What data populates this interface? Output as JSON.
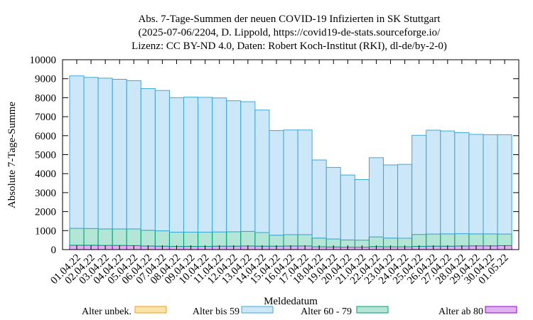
{
  "chart_data": {
    "type": "bar",
    "stacked": true,
    "title_lines": [
      "Abs. 7-Tage-Summen der neuen COVID-19 Infizierten in SK Stuttgart",
      "(2025-07-06/2204, D. Lippold, https://covid19-de-stats.sourceforge.io/",
      "Lizenz: CC BY-ND 4.0, Daten: Robert Koch-Institut (RKI), dl-de/by-2-0)"
    ],
    "xlabel": "Meldedatum",
    "ylabel": "Absolute 7-Tage-Summe",
    "ylim": [
      0,
      10000
    ],
    "yticks": [
      0,
      1000,
      2000,
      3000,
      4000,
      5000,
      6000,
      7000,
      8000,
      9000,
      10000
    ],
    "grid": false,
    "legend_position": "bottom",
    "categories": [
      "01.04.22",
      "02.04.22",
      "03.04.22",
      "04.04.22",
      "05.04.22",
      "06.04.22",
      "07.04.22",
      "08.04.22",
      "09.04.22",
      "10.04.22",
      "11.04.22",
      "12.04.22",
      "13.04.22",
      "14.04.22",
      "15.04.22",
      "16.04.22",
      "17.04.22",
      "18.04.22",
      "19.04.22",
      "20.04.22",
      "21.04.22",
      "22.04.22",
      "23.04.22",
      "24.04.22",
      "25.04.22",
      "26.04.22",
      "27.04.22",
      "28.04.22",
      "29.04.22",
      "30.04.22",
      "01.05.22"
    ],
    "series": [
      {
        "name": "Alter unbek.",
        "color": "#fde3a7",
        "stroke": "#e6a01a",
        "values": [
          0,
          0,
          0,
          0,
          0,
          0,
          0,
          0,
          0,
          0,
          0,
          0,
          0,
          0,
          0,
          0,
          0,
          0,
          0,
          0,
          0,
          0,
          0,
          0,
          0,
          0,
          0,
          0,
          0,
          0,
          0
        ]
      },
      {
        "name": "Alter ab 80",
        "color": "#e0b0f0",
        "stroke": "#9400d3",
        "values": [
          230,
          230,
          220,
          220,
          210,
          190,
          180,
          170,
          170,
          170,
          180,
          180,
          190,
          180,
          180,
          190,
          190,
          150,
          140,
          130,
          130,
          160,
          150,
          150,
          170,
          180,
          180,
          190,
          200,
          200,
          210
        ]
      },
      {
        "name": "Alter 60 - 79",
        "color": "#b3e6d6",
        "stroke": "#009e73",
        "values": [
          890,
          880,
          870,
          870,
          880,
          830,
          810,
          750,
          750,
          750,
          750,
          760,
          770,
          720,
          580,
          600,
          600,
          460,
          420,
          380,
          370,
          510,
          460,
          450,
          630,
          640,
          650,
          650,
          630,
          630,
          610
        ]
      },
      {
        "name": "Alter bis 59",
        "color": "#cce8f8",
        "stroke": "#3ea7d6",
        "values": [
          8030,
          7960,
          7940,
          7880,
          7810,
          7460,
          7390,
          7080,
          7110,
          7100,
          7060,
          6900,
          6830,
          6450,
          5510,
          5510,
          5510,
          4110,
          3770,
          3420,
          3190,
          4170,
          3850,
          3890,
          5220,
          5470,
          5420,
          5320,
          5240,
          5220,
          5230
        ]
      }
    ]
  }
}
